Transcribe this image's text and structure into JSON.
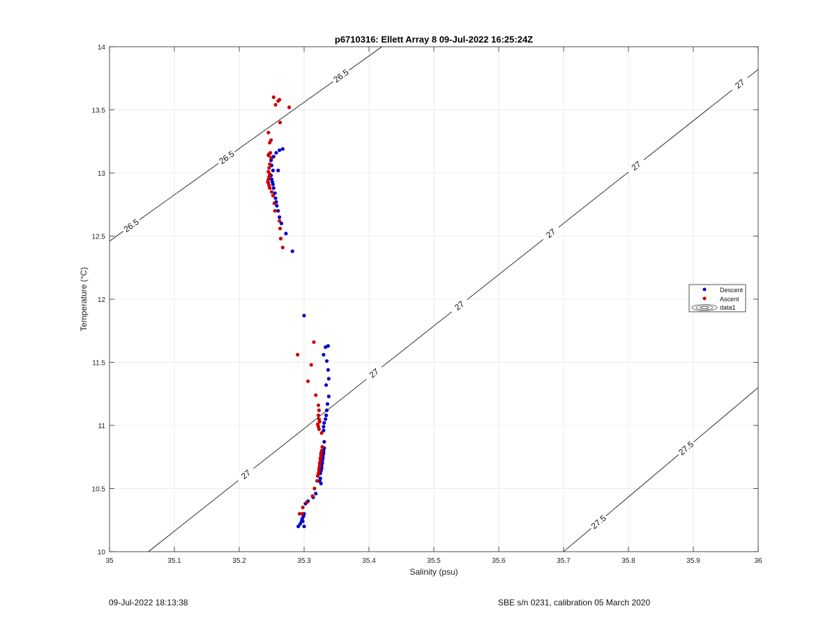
{
  "chart_data": {
    "type": "scatter",
    "title": "p6710316: Ellett Array 8 09-Jul-2022 16:25:24Z",
    "xlabel": "Salinity (psu)",
    "ylabel": "Temperature (°C)",
    "xlim": [
      35,
      36
    ],
    "ylim": [
      10,
      14
    ],
    "xticks": [
      "35",
      "35.1",
      "35.2",
      "35.3",
      "35.4",
      "35.5",
      "35.6",
      "35.7",
      "35.8",
      "35.9",
      "36"
    ],
    "yticks": [
      "10",
      "10.5",
      "11",
      "11.5",
      "12",
      "12.5",
      "13",
      "13.5",
      "14"
    ],
    "grid": true,
    "legend_position": "right",
    "series": [
      {
        "name": "Descent",
        "color": "#0000cc",
        "points": [
          [
            35.267,
            13.19
          ],
          [
            35.262,
            13.18
          ],
          [
            35.257,
            13.16
          ],
          [
            35.253,
            13.13
          ],
          [
            35.25,
            13.12
          ],
          [
            35.249,
            13.1
          ],
          [
            35.25,
            13.06
          ],
          [
            35.252,
            13.02
          ],
          [
            35.26,
            13.02
          ],
          [
            35.249,
            12.98
          ],
          [
            35.25,
            12.95
          ],
          [
            35.251,
            12.93
          ],
          [
            35.252,
            12.91
          ],
          [
            35.253,
            12.88
          ],
          [
            35.255,
            12.84
          ],
          [
            35.256,
            12.8
          ],
          [
            35.257,
            12.77
          ],
          [
            35.258,
            12.74
          ],
          [
            35.26,
            12.7
          ],
          [
            35.262,
            12.65
          ],
          [
            35.265,
            12.6
          ],
          [
            35.272,
            12.52
          ],
          [
            35.282,
            12.38
          ],
          [
            35.3,
            11.87
          ],
          [
            35.337,
            11.63
          ],
          [
            35.333,
            11.62
          ],
          [
            35.33,
            11.56
          ],
          [
            35.335,
            11.51
          ],
          [
            35.337,
            11.44
          ],
          [
            35.338,
            11.37
          ],
          [
            35.334,
            11.32
          ],
          [
            35.338,
            11.23
          ],
          [
            35.336,
            11.17
          ],
          [
            35.335,
            11.12
          ],
          [
            35.334,
            11.08
          ],
          [
            35.333,
            11.05
          ],
          [
            35.331,
            11.02
          ],
          [
            35.33,
            10.99
          ],
          [
            35.33,
            10.96
          ],
          [
            35.331,
            10.87
          ],
          [
            35.331,
            10.82
          ],
          [
            35.33,
            10.8
          ],
          [
            35.33,
            10.78
          ],
          [
            35.329,
            10.76
          ],
          [
            35.329,
            10.74
          ],
          [
            35.328,
            10.72
          ],
          [
            35.328,
            10.7
          ],
          [
            35.327,
            10.68
          ],
          [
            35.327,
            10.66
          ],
          [
            35.326,
            10.64
          ],
          [
            35.325,
            10.62
          ],
          [
            35.325,
            10.58
          ],
          [
            35.324,
            10.56
          ],
          [
            35.326,
            10.54
          ],
          [
            35.318,
            10.46
          ],
          [
            35.314,
            10.43
          ],
          [
            35.306,
            10.4
          ],
          [
            35.302,
            10.38
          ],
          [
            35.3,
            10.3
          ],
          [
            35.299,
            10.28
          ],
          [
            35.297,
            10.26
          ],
          [
            35.296,
            10.24
          ],
          [
            35.294,
            10.22
          ],
          [
            35.291,
            10.2
          ],
          [
            35.3,
            10.2
          ],
          [
            35.298,
            10.24
          ]
        ]
      },
      {
        "name": "Ascent",
        "color": "#cc0000",
        "points": [
          [
            35.253,
            13.6
          ],
          [
            35.262,
            13.58
          ],
          [
            35.26,
            13.57
          ],
          [
            35.256,
            13.54
          ],
          [
            35.277,
            13.52
          ],
          [
            35.263,
            13.4
          ],
          [
            35.245,
            13.32
          ],
          [
            35.249,
            13.26
          ],
          [
            35.247,
            13.24
          ],
          [
            35.248,
            13.16
          ],
          [
            35.246,
            13.15
          ],
          [
            35.245,
            13.14
          ],
          [
            35.249,
            13.12
          ],
          [
            35.247,
            13.07
          ],
          [
            35.246,
            13.04
          ],
          [
            35.245,
            13.01
          ],
          [
            35.247,
            12.99
          ],
          [
            35.246,
            12.97
          ],
          [
            35.245,
            12.95
          ],
          [
            35.244,
            12.93
          ],
          [
            35.245,
            12.92
          ],
          [
            35.246,
            12.9
          ],
          [
            35.247,
            12.88
          ],
          [
            35.25,
            12.85
          ],
          [
            35.252,
            12.82
          ],
          [
            35.254,
            12.76
          ],
          [
            35.255,
            12.7
          ],
          [
            35.262,
            12.62
          ],
          [
            35.263,
            12.56
          ],
          [
            35.264,
            12.48
          ],
          [
            35.267,
            12.41
          ],
          [
            35.315,
            11.66
          ],
          [
            35.29,
            11.56
          ],
          [
            35.311,
            11.48
          ],
          [
            35.306,
            11.35
          ],
          [
            35.318,
            11.24
          ],
          [
            35.322,
            11.16
          ],
          [
            35.323,
            11.12
          ],
          [
            35.322,
            11.08
          ],
          [
            35.323,
            11.05
          ],
          [
            35.324,
            11.03
          ],
          [
            35.321,
            11.01
          ],
          [
            35.322,
            10.99
          ],
          [
            35.323,
            10.97
          ],
          [
            35.327,
            10.94
          ],
          [
            35.328,
            10.83
          ],
          [
            35.327,
            10.8
          ],
          [
            35.326,
            10.78
          ],
          [
            35.326,
            10.76
          ],
          [
            35.325,
            10.74
          ],
          [
            35.325,
            10.72
          ],
          [
            35.324,
            10.7
          ],
          [
            35.324,
            10.68
          ],
          [
            35.323,
            10.66
          ],
          [
            35.323,
            10.64
          ],
          [
            35.322,
            10.62
          ],
          [
            35.321,
            10.6
          ],
          [
            35.32,
            10.56
          ],
          [
            35.316,
            10.5
          ],
          [
            35.313,
            10.44
          ],
          [
            35.304,
            10.39
          ],
          [
            35.298,
            10.35
          ],
          [
            35.293,
            10.3
          ],
          [
            35.297,
            10.3
          ]
        ]
      },
      {
        "name": "data1",
        "type": "contour",
        "color": "#000000",
        "levels": [
          {
            "label": "26.5",
            "line": [
              [
                35,
                12.46
              ],
              [
                35.42,
                14.0
              ]
            ]
          },
          {
            "label": "27",
            "line": [
              [
                35.06,
                10.0
              ],
              [
                36.0,
                13.82
              ]
            ]
          },
          {
            "label": "27.5",
            "line": [
              [
                35.7,
                10.0
              ],
              [
                36.0,
                11.3
              ]
            ]
          }
        ]
      }
    ]
  },
  "footer": {
    "date": "09-Jul-2022 18:13:38",
    "calibration": "SBE s/n 0231, calibration 05 March 2020"
  }
}
